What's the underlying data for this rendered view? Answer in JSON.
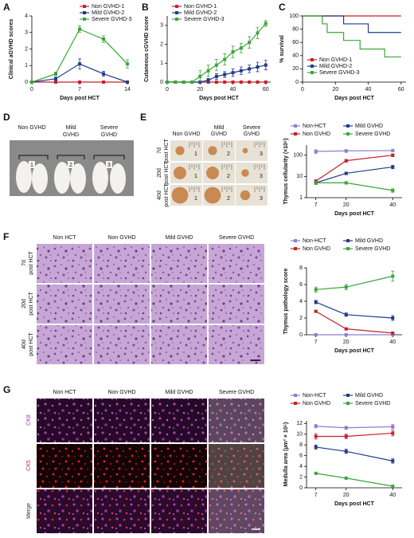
{
  "panel_letters": [
    "A",
    "B",
    "C",
    "D",
    "E",
    "F",
    "G"
  ],
  "chart_data": [
    {
      "type": "line",
      "xlabel": "Days post HCT",
      "ylabel": "Clinical aGVHD scores",
      "x": [
        0,
        3.5,
        7,
        10.5,
        14
      ],
      "xlim": [
        0,
        14
      ],
      "xticks": [
        0,
        7,
        14
      ],
      "ylim": [
        0,
        4
      ],
      "yticks": [
        0,
        1,
        2,
        3,
        4
      ],
      "legend": "upper right",
      "series": [
        {
          "name": "Non GVHD-1",
          "color": "#c8202a",
          "values": [
            0,
            0,
            0,
            0,
            0
          ]
        },
        {
          "name": "Mild GVHD-2",
          "color": "#1f3c8c",
          "values": [
            0,
            0.2,
            1.1,
            0.5,
            0
          ],
          "errors": [
            0,
            0.1,
            0.3,
            0.15,
            0
          ]
        },
        {
          "name": "Severe GVHD-3",
          "color": "#3aa63a",
          "values": [
            0,
            0.5,
            3.2,
            2.6,
            1.1
          ],
          "errors": [
            0,
            0.1,
            0.2,
            0.2,
            0.25
          ]
        }
      ]
    },
    {
      "type": "line",
      "xlabel": "Days post HCT",
      "ylabel": "Cutaneous cGVHD score",
      "x": [
        0,
        5,
        10,
        15,
        20,
        25,
        30,
        35,
        40,
        45,
        50,
        55,
        60
      ],
      "xlim": [
        0,
        63
      ],
      "xticks": [
        0,
        20,
        40,
        60
      ],
      "ylim": [
        0,
        3.5
      ],
      "yticks": [
        0,
        1,
        2,
        3
      ],
      "legend": "upper left",
      "series": [
        {
          "name": "Non GVHD-1",
          "color": "#c8202a",
          "values": [
            0,
            0,
            0,
            0,
            0,
            0,
            0,
            0,
            0,
            0,
            0,
            0,
            0
          ]
        },
        {
          "name": "Mild GVHD-2",
          "color": "#1f3c8c",
          "values": [
            0,
            0,
            0,
            0,
            0,
            0.1,
            0.3,
            0.4,
            0.5,
            0.6,
            0.7,
            0.8,
            0.9
          ],
          "errors": [
            0,
            0,
            0,
            0,
            0,
            0.1,
            0.15,
            0.15,
            0.2,
            0.2,
            0.2,
            0.25,
            0.25
          ]
        },
        {
          "name": "Severe GVHD-3",
          "color": "#3aa63a",
          "values": [
            0,
            0,
            0,
            0,
            0.3,
            0.6,
            0.9,
            1.2,
            1.6,
            1.8,
            2.1,
            2.6,
            3.1
          ],
          "errors": [
            0,
            0,
            0,
            0,
            0.3,
            0.3,
            0.3,
            0.3,
            0.3,
            0.25,
            0.3,
            0.3,
            0.15
          ]
        }
      ]
    },
    {
      "type": "step",
      "xlabel": "Days post HCT",
      "ylabel": "% survival",
      "xlim": [
        0,
        63
      ],
      "xticks": [
        0,
        20,
        40,
        60
      ],
      "ylim": [
        0,
        100
      ],
      "yticks": [
        0,
        20,
        40,
        60,
        80,
        100
      ],
      "legend": "lower left",
      "series": [
        {
          "name": "Non GVHD-1",
          "color": "#c8202a",
          "x": [
            0,
            60
          ],
          "values": [
            100,
            100
          ]
        },
        {
          "name": "Mild GVHD-2",
          "color": "#1f3c8c",
          "x": [
            0,
            25,
            40,
            60
          ],
          "values": [
            100,
            88,
            75,
            75
          ]
        },
        {
          "name": "Severe GVHD-3",
          "color": "#3aa63a",
          "x": [
            0,
            12,
            15,
            25,
            35,
            50,
            60
          ],
          "values": [
            100,
            88,
            75,
            63,
            50,
            38,
            38
          ]
        }
      ]
    },
    {
      "type": "line",
      "xlabel": "Days post HCT",
      "ylabel": "Thymus cellularity (×10⁶)",
      "log": true,
      "x": [
        7,
        20,
        40
      ],
      "xlim": [
        3,
        44
      ],
      "xticks": [
        7,
        20,
        40
      ],
      "ylim": [
        1,
        300
      ],
      "yticks": [
        1,
        10,
        100
      ],
      "legend": "top",
      "series": [
        {
          "name": "Non-HCT",
          "color": "#8c7fd0",
          "values": [
            150,
            160,
            165
          ],
          "errors": [
            30,
            25,
            20
          ]
        },
        {
          "name": "Non GVHD",
          "color": "#c8202a",
          "values": [
            6,
            55,
            100
          ],
          "errors": [
            1,
            8,
            15
          ]
        },
        {
          "name": "Mild GVHD",
          "color": "#1f3c8c",
          "values": [
            5,
            14,
            28
          ],
          "errors": [
            0.8,
            2,
            5
          ]
        },
        {
          "name": "Severe GVHD",
          "color": "#3aa63a",
          "values": [
            5,
            5,
            2.2
          ],
          "errors": [
            0.8,
            0.7,
            0.4
          ]
        }
      ]
    },
    {
      "type": "line",
      "xlabel": "Days post HCT",
      "ylabel": "Thymus pathology score",
      "x": [
        7,
        20,
        40
      ],
      "xlim": [
        3,
        44
      ],
      "xticks": [
        7,
        20,
        40
      ],
      "ylim": [
        0,
        8
      ],
      "yticks": [
        0,
        2,
        4,
        6,
        8
      ],
      "legend": "top",
      "series": [
        {
          "name": "Non-HCT",
          "color": "#8c7fd0",
          "values": [
            0,
            0,
            0
          ]
        },
        {
          "name": "Non GVHD",
          "color": "#c8202a",
          "values": [
            2.8,
            0.7,
            0.2
          ],
          "errors": [
            0.1,
            0.1,
            0.1
          ]
        },
        {
          "name": "Mild GVHD",
          "color": "#1f3c8c",
          "values": [
            3.9,
            2.4,
            2.0
          ],
          "errors": [
            0.2,
            0.2,
            0.3
          ]
        },
        {
          "name": "Severe GVHD",
          "color": "#3aa63a",
          "values": [
            5.4,
            5.7,
            7.0
          ],
          "errors": [
            0.3,
            0.3,
            0.6
          ]
        }
      ]
    },
    {
      "type": "line",
      "xlabel": "Days post HCT",
      "ylabel": "Medulla area (µm² × 10⁵)",
      "x": [
        7,
        20,
        40
      ],
      "xlim": [
        3,
        44
      ],
      "xticks": [
        7,
        20,
        40
      ],
      "ylim": [
        0,
        12.5
      ],
      "yticks": [
        0,
        2,
        4,
        6,
        8,
        10,
        12
      ],
      "legend": "top",
      "series": [
        {
          "name": "Non-HCT",
          "color": "#8c7fd0",
          "values": [
            11.5,
            11.2,
            11.4
          ],
          "errors": [
            0.3,
            0.3,
            0.4
          ]
        },
        {
          "name": "Non GVHD",
          "color": "#c8202a",
          "values": [
            9.6,
            9.6,
            10.2
          ],
          "errors": [
            0.5,
            0.4,
            0.5
          ]
        },
        {
          "name": "Mild GVHD",
          "color": "#1f3c8c",
          "values": [
            7.6,
            6.8,
            5.0
          ],
          "errors": [
            0.4,
            0.4,
            0.4
          ]
        },
        {
          "name": "Severe GVHD",
          "color": "#3aa63a",
          "values": [
            2.7,
            1.8,
            0.3
          ],
          "errors": [
            0.1,
            0.1,
            0.1
          ]
        }
      ]
    }
  ],
  "photo_d": {
    "labels": [
      [
        "Non GVHD",
        ""
      ],
      [
        "Mild",
        "GVHD"
      ],
      [
        "Severe",
        "GVHD"
      ]
    ],
    "numbers": [
      "1",
      "2",
      "3"
    ]
  },
  "photo_e": {
    "columns": [
      [
        "Non GVHD"
      ],
      [
        "Mild",
        "GVHD"
      ],
      [
        "Severe",
        "GVHD"
      ]
    ],
    "rows": [
      [
        "7d",
        "post HCT"
      ],
      [
        "20d",
        "post HCT"
      ],
      [
        "40d",
        "post HCT"
      ]
    ],
    "numbers": [
      "1",
      "2",
      "3"
    ]
  },
  "histology_f": {
    "columns": [
      "Non HCT",
      "Non GVHD",
      "Mild GVHD",
      "Severe GVHD"
    ],
    "rows": [
      [
        "7d",
        "post HCT"
      ],
      [
        "20d",
        "post HCT"
      ],
      [
        "40d",
        "post HCT"
      ]
    ]
  },
  "fluorescence_g": {
    "columns": [
      "Non HCT",
      "Non GVHD",
      "Mild GVHD",
      "Severe GVHD"
    ],
    "rows": [
      "CK8",
      "CK5",
      "Merge"
    ]
  }
}
